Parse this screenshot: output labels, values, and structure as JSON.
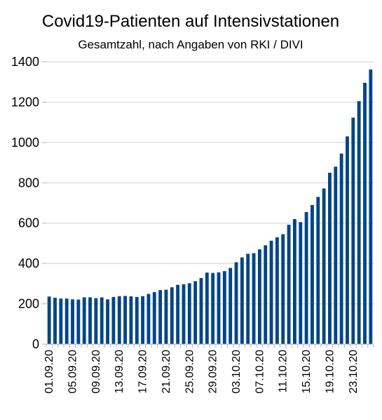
{
  "chart_data": {
    "type": "bar",
    "title": "Covid19-Patienten auf Intensivstationen",
    "subtitle": "Gesamtzahl, nach Angaben von RKI / DIVI",
    "xlabel": "",
    "ylabel": "",
    "ylim": [
      0,
      1400
    ],
    "yticks": [
      0,
      200,
      400,
      600,
      800,
      1000,
      1200,
      1400
    ],
    "grid": "horizontal",
    "legend": "none",
    "color": "#004586",
    "categories": [
      "01.09.20",
      "02.09.20",
      "03.09.20",
      "04.09.20",
      "05.09.20",
      "06.09.20",
      "07.09.20",
      "08.09.20",
      "09.09.20",
      "10.09.20",
      "11.09.20",
      "12.09.20",
      "13.09.20",
      "14.09.20",
      "15.09.20",
      "16.09.20",
      "17.09.20",
      "18.09.20",
      "19.09.20",
      "20.09.20",
      "21.09.20",
      "22.09.20",
      "23.09.20",
      "24.09.20",
      "25.09.20",
      "26.09.20",
      "27.09.20",
      "28.09.20",
      "29.09.20",
      "30.09.20",
      "01.10.20",
      "02.10.20",
      "03.10.20",
      "04.10.20",
      "05.10.20",
      "06.10.20",
      "07.10.20",
      "08.10.20",
      "09.10.20",
      "10.10.20",
      "11.10.20",
      "12.10.20",
      "13.10.20",
      "14.10.20",
      "15.10.20",
      "16.10.20",
      "17.10.20",
      "18.10.20",
      "19.10.20",
      "20.10.20",
      "21.10.20",
      "22.10.20",
      "23.10.20",
      "24.10.20",
      "25.10.20",
      "26.10.20"
    ],
    "tick_labels": [
      "01.09.20",
      "05.09.20",
      "09.09.20",
      "13.09.20",
      "17.09.20",
      "21.09.20",
      "25.09.20",
      "29.09.20",
      "03.10.20",
      "07.10.20",
      "11.10.20",
      "15.10.20",
      "19.10.20",
      "23.10.20"
    ],
    "values": [
      236,
      230,
      226,
      226,
      222,
      221,
      232,
      232,
      228,
      232,
      222,
      234,
      238,
      239,
      237,
      234,
      238,
      249,
      258,
      268,
      270,
      282,
      294,
      297,
      302,
      312,
      328,
      355,
      353,
      356,
      362,
      378,
      406,
      430,
      448,
      451,
      470,
      490,
      513,
      530,
      545,
      592,
      620,
      605,
      655,
      690,
      730,
      772,
      850,
      880,
      945,
      1030,
      1123,
      1205,
      1296,
      1362
    ]
  }
}
